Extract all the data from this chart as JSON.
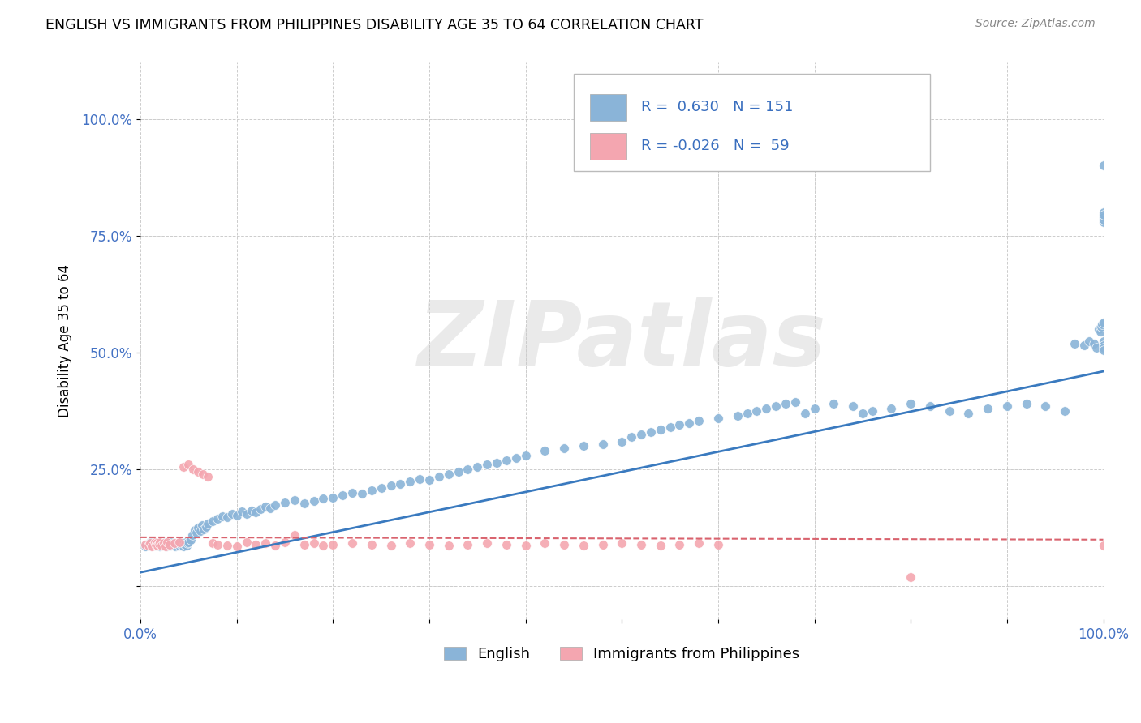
{
  "title": "ENGLISH VS IMMIGRANTS FROM PHILIPPINES DISABILITY AGE 35 TO 64 CORRELATION CHART",
  "source": "Source: ZipAtlas.com",
  "xlabel": "",
  "ylabel": "Disability Age 35 to 64",
  "xlim": [
    0.0,
    1.0
  ],
  "ylim": [
    -0.07,
    1.12
  ],
  "yticks": [
    0.0,
    0.25,
    0.5,
    0.75,
    1.0
  ],
  "ytick_labels": [
    "",
    "25.0%",
    "50.0%",
    "75.0%",
    "100.0%"
  ],
  "xticks": [
    0.0,
    0.1,
    0.2,
    0.3,
    0.4,
    0.5,
    0.6,
    0.7,
    0.8,
    0.9,
    1.0
  ],
  "xtick_labels": [
    "0.0%",
    "",
    "",
    "",
    "",
    "",
    "",
    "",
    "",
    "",
    "100.0%"
  ],
  "legend1_R": "0.630",
  "legend1_N": "151",
  "legend2_R": "-0.026",
  "legend2_N": "59",
  "blue_color": "#8ab4d8",
  "pink_color": "#f4a6b0",
  "blue_line_color": "#3a7abf",
  "pink_line_color": "#d9636e",
  "watermark": "ZIPatlas",
  "english_x": [
    0.005,
    0.008,
    0.01,
    0.012,
    0.015,
    0.016,
    0.017,
    0.018,
    0.019,
    0.02,
    0.02,
    0.021,
    0.022,
    0.022,
    0.023,
    0.024,
    0.025,
    0.025,
    0.026,
    0.027,
    0.028,
    0.029,
    0.03,
    0.031,
    0.032,
    0.033,
    0.034,
    0.035,
    0.036,
    0.037,
    0.038,
    0.039,
    0.04,
    0.041,
    0.042,
    0.043,
    0.044,
    0.045,
    0.046,
    0.047,
    0.048,
    0.049,
    0.05,
    0.052,
    0.054,
    0.056,
    0.058,
    0.06,
    0.062,
    0.064,
    0.066,
    0.068,
    0.07,
    0.075,
    0.08,
    0.085,
    0.09,
    0.095,
    0.1,
    0.105,
    0.11,
    0.115,
    0.12,
    0.125,
    0.13,
    0.135,
    0.14,
    0.15,
    0.16,
    0.17,
    0.18,
    0.19,
    0.2,
    0.21,
    0.22,
    0.23,
    0.24,
    0.25,
    0.26,
    0.27,
    0.28,
    0.29,
    0.3,
    0.31,
    0.32,
    0.33,
    0.34,
    0.35,
    0.36,
    0.37,
    0.38,
    0.39,
    0.4,
    0.42,
    0.44,
    0.46,
    0.48,
    0.5,
    0.51,
    0.52,
    0.53,
    0.54,
    0.55,
    0.56,
    0.57,
    0.58,
    0.6,
    0.62,
    0.63,
    0.64,
    0.65,
    0.66,
    0.67,
    0.68,
    0.69,
    0.7,
    0.72,
    0.74,
    0.75,
    0.76,
    0.78,
    0.8,
    0.82,
    0.84,
    0.86,
    0.88,
    0.9,
    0.92,
    0.94,
    0.96,
    0.97,
    0.98,
    0.985,
    0.99,
    0.993,
    0.995,
    0.997,
    0.998,
    0.999,
    1.0,
    1.0,
    1.0,
    1.0,
    1.0,
    1.0,
    1.0,
    1.0,
    1.0,
    1.0,
    1.0,
    1.0
  ],
  "english_y": [
    0.085,
    0.09,
    0.095,
    0.088,
    0.092,
    0.087,
    0.093,
    0.089,
    0.091,
    0.086,
    0.094,
    0.088,
    0.092,
    0.09,
    0.087,
    0.093,
    0.089,
    0.095,
    0.091,
    0.086,
    0.088,
    0.092,
    0.09,
    0.087,
    0.094,
    0.089,
    0.093,
    0.091,
    0.086,
    0.09,
    0.088,
    0.092,
    0.087,
    0.094,
    0.089,
    0.093,
    0.091,
    0.086,
    0.09,
    0.095,
    0.088,
    0.092,
    0.095,
    0.1,
    0.11,
    0.12,
    0.115,
    0.125,
    0.118,
    0.13,
    0.122,
    0.128,
    0.135,
    0.14,
    0.145,
    0.15,
    0.148,
    0.155,
    0.152,
    0.16,
    0.155,
    0.162,
    0.158,
    0.165,
    0.17,
    0.168,
    0.175,
    0.18,
    0.185,
    0.178,
    0.182,
    0.188,
    0.19,
    0.195,
    0.2,
    0.198,
    0.205,
    0.21,
    0.215,
    0.22,
    0.225,
    0.23,
    0.228,
    0.235,
    0.24,
    0.245,
    0.25,
    0.255,
    0.26,
    0.265,
    0.27,
    0.275,
    0.28,
    0.29,
    0.295,
    0.3,
    0.305,
    0.31,
    0.32,
    0.325,
    0.33,
    0.335,
    0.34,
    0.345,
    0.35,
    0.355,
    0.36,
    0.365,
    0.37,
    0.375,
    0.38,
    0.385,
    0.39,
    0.395,
    0.37,
    0.38,
    0.39,
    0.385,
    0.37,
    0.375,
    0.38,
    0.39,
    0.385,
    0.375,
    0.37,
    0.38,
    0.385,
    0.39,
    0.385,
    0.375,
    0.52,
    0.515,
    0.525,
    0.52,
    0.51,
    0.55,
    0.545,
    0.555,
    0.56,
    0.565,
    0.52,
    0.525,
    0.515,
    0.51,
    0.505,
    0.78,
    0.8,
    0.79,
    0.785,
    0.795,
    0.9
  ],
  "philippines_x": [
    0.005,
    0.008,
    0.01,
    0.012,
    0.015,
    0.016,
    0.017,
    0.018,
    0.019,
    0.02,
    0.022,
    0.024,
    0.026,
    0.028,
    0.03,
    0.035,
    0.04,
    0.045,
    0.05,
    0.055,
    0.06,
    0.065,
    0.07,
    0.075,
    0.08,
    0.09,
    0.1,
    0.11,
    0.12,
    0.13,
    0.14,
    0.15,
    0.16,
    0.17,
    0.18,
    0.19,
    0.2,
    0.22,
    0.24,
    0.26,
    0.28,
    0.3,
    0.32,
    0.34,
    0.36,
    0.38,
    0.4,
    0.42,
    0.44,
    0.46,
    0.48,
    0.5,
    0.52,
    0.54,
    0.56,
    0.58,
    0.6,
    0.8,
    1.0
  ],
  "philippines_y": [
    0.09,
    0.088,
    0.092,
    0.086,
    0.094,
    0.089,
    0.093,
    0.087,
    0.091,
    0.095,
    0.088,
    0.092,
    0.086,
    0.094,
    0.09,
    0.092,
    0.095,
    0.255,
    0.26,
    0.25,
    0.245,
    0.24,
    0.235,
    0.092,
    0.09,
    0.088,
    0.086,
    0.094,
    0.09,
    0.092,
    0.088,
    0.095,
    0.11,
    0.09,
    0.092,
    0.088,
    0.09,
    0.092,
    0.09,
    0.088,
    0.092,
    0.09,
    0.088,
    0.09,
    0.092,
    0.09,
    0.088,
    0.092,
    0.09,
    0.088,
    0.09,
    0.092,
    0.09,
    0.088,
    0.09,
    0.092,
    0.09,
    0.02,
    0.088
  ],
  "blue_trend_x0": 0.0,
  "blue_trend_x1": 1.0,
  "blue_trend_y0": 0.03,
  "blue_trend_y1": 0.46,
  "pink_trend_x0": 0.0,
  "pink_trend_x1": 1.0,
  "pink_trend_y0": 0.105,
  "pink_trend_y1": 0.1
}
